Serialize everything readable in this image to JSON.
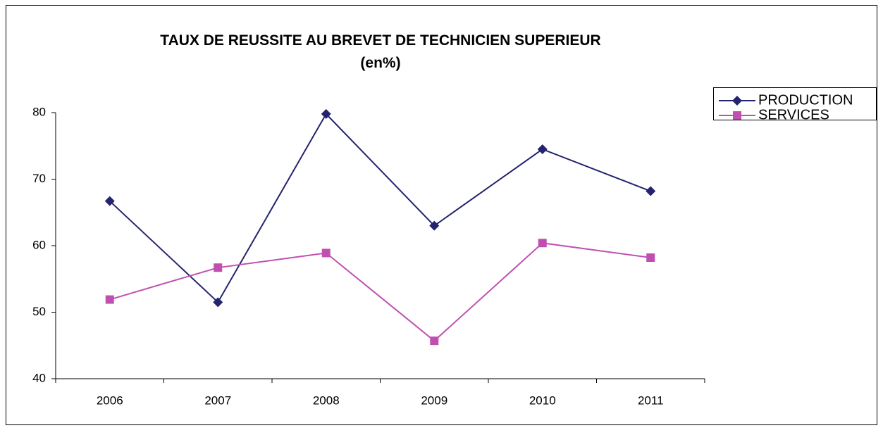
{
  "chart_data": {
    "type": "line",
    "title": "TAUX DE REUSSITE AU BREVET DE TECHNICIEN SUPERIEUR (en%)",
    "categories": [
      "2006",
      "2007",
      "2008",
      "2009",
      "2010",
      "2011"
    ],
    "series": [
      {
        "name": "PRODUCTION",
        "color": "#23236e",
        "marker": "diamond",
        "values": [
          66.7,
          51.5,
          79.8,
          63.0,
          74.5,
          68.2
        ]
      },
      {
        "name": "SERVICES",
        "color": "#c050b0",
        "marker": "square",
        "values": [
          51.9,
          56.7,
          58.9,
          45.7,
          60.4,
          58.2
        ]
      }
    ],
    "ylim": [
      40,
      80
    ],
    "yticks": [
      40,
      50,
      60,
      70,
      80
    ],
    "grid": false,
    "legend": "right"
  }
}
